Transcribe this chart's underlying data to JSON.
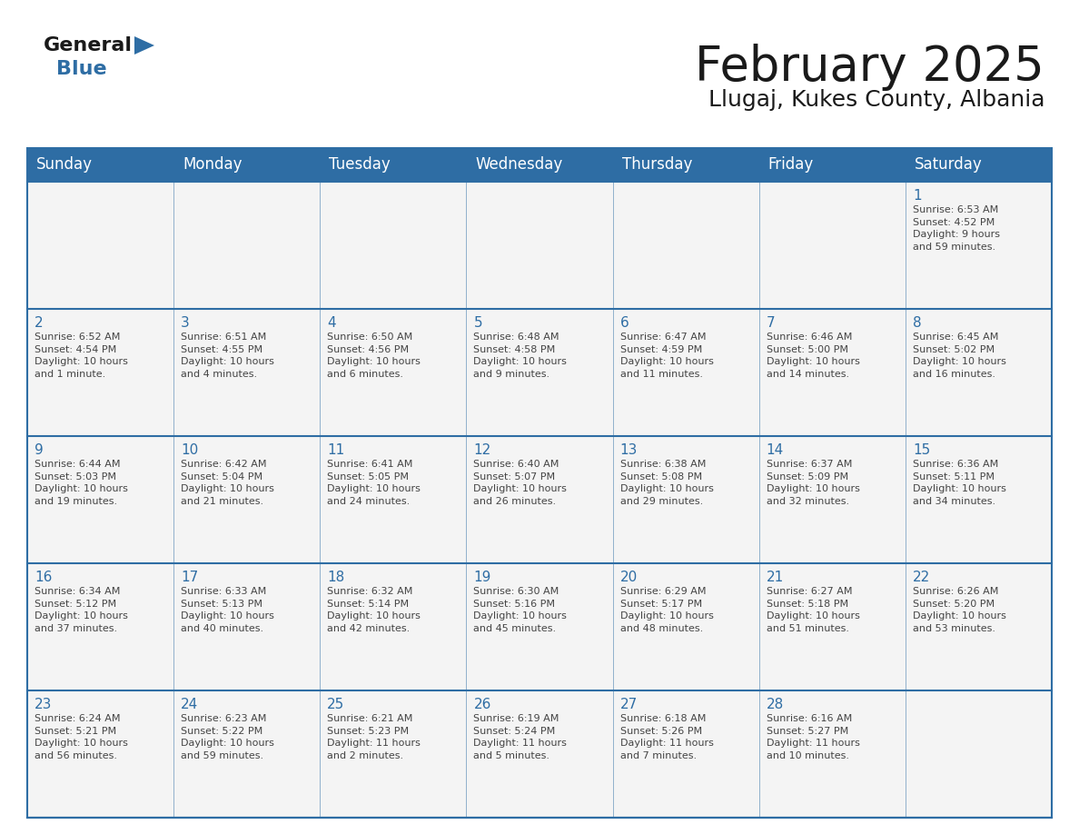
{
  "title": "February 2025",
  "subtitle": "Llugaj, Kukes County, Albania",
  "header_bg": "#2E6DA4",
  "header_text_color": "#FFFFFF",
  "border_color": "#2E6DA4",
  "day_names": [
    "Sunday",
    "Monday",
    "Tuesday",
    "Wednesday",
    "Thursday",
    "Friday",
    "Saturday"
  ],
  "title_color": "#1a1a1a",
  "subtitle_color": "#1a1a1a",
  "day_num_color": "#2E6DA4",
  "cell_text_color": "#444444",
  "cell_bg": "#F4F4F4",
  "weeks": [
    [
      {
        "day": null,
        "info": ""
      },
      {
        "day": null,
        "info": ""
      },
      {
        "day": null,
        "info": ""
      },
      {
        "day": null,
        "info": ""
      },
      {
        "day": null,
        "info": ""
      },
      {
        "day": null,
        "info": ""
      },
      {
        "day": 1,
        "info": "Sunrise: 6:53 AM\nSunset: 4:52 PM\nDaylight: 9 hours\nand 59 minutes."
      }
    ],
    [
      {
        "day": 2,
        "info": "Sunrise: 6:52 AM\nSunset: 4:54 PM\nDaylight: 10 hours\nand 1 minute."
      },
      {
        "day": 3,
        "info": "Sunrise: 6:51 AM\nSunset: 4:55 PM\nDaylight: 10 hours\nand 4 minutes."
      },
      {
        "day": 4,
        "info": "Sunrise: 6:50 AM\nSunset: 4:56 PM\nDaylight: 10 hours\nand 6 minutes."
      },
      {
        "day": 5,
        "info": "Sunrise: 6:48 AM\nSunset: 4:58 PM\nDaylight: 10 hours\nand 9 minutes."
      },
      {
        "day": 6,
        "info": "Sunrise: 6:47 AM\nSunset: 4:59 PM\nDaylight: 10 hours\nand 11 minutes."
      },
      {
        "day": 7,
        "info": "Sunrise: 6:46 AM\nSunset: 5:00 PM\nDaylight: 10 hours\nand 14 minutes."
      },
      {
        "day": 8,
        "info": "Sunrise: 6:45 AM\nSunset: 5:02 PM\nDaylight: 10 hours\nand 16 minutes."
      }
    ],
    [
      {
        "day": 9,
        "info": "Sunrise: 6:44 AM\nSunset: 5:03 PM\nDaylight: 10 hours\nand 19 minutes."
      },
      {
        "day": 10,
        "info": "Sunrise: 6:42 AM\nSunset: 5:04 PM\nDaylight: 10 hours\nand 21 minutes."
      },
      {
        "day": 11,
        "info": "Sunrise: 6:41 AM\nSunset: 5:05 PM\nDaylight: 10 hours\nand 24 minutes."
      },
      {
        "day": 12,
        "info": "Sunrise: 6:40 AM\nSunset: 5:07 PM\nDaylight: 10 hours\nand 26 minutes."
      },
      {
        "day": 13,
        "info": "Sunrise: 6:38 AM\nSunset: 5:08 PM\nDaylight: 10 hours\nand 29 minutes."
      },
      {
        "day": 14,
        "info": "Sunrise: 6:37 AM\nSunset: 5:09 PM\nDaylight: 10 hours\nand 32 minutes."
      },
      {
        "day": 15,
        "info": "Sunrise: 6:36 AM\nSunset: 5:11 PM\nDaylight: 10 hours\nand 34 minutes."
      }
    ],
    [
      {
        "day": 16,
        "info": "Sunrise: 6:34 AM\nSunset: 5:12 PM\nDaylight: 10 hours\nand 37 minutes."
      },
      {
        "day": 17,
        "info": "Sunrise: 6:33 AM\nSunset: 5:13 PM\nDaylight: 10 hours\nand 40 minutes."
      },
      {
        "day": 18,
        "info": "Sunrise: 6:32 AM\nSunset: 5:14 PM\nDaylight: 10 hours\nand 42 minutes."
      },
      {
        "day": 19,
        "info": "Sunrise: 6:30 AM\nSunset: 5:16 PM\nDaylight: 10 hours\nand 45 minutes."
      },
      {
        "day": 20,
        "info": "Sunrise: 6:29 AM\nSunset: 5:17 PM\nDaylight: 10 hours\nand 48 minutes."
      },
      {
        "day": 21,
        "info": "Sunrise: 6:27 AM\nSunset: 5:18 PM\nDaylight: 10 hours\nand 51 minutes."
      },
      {
        "day": 22,
        "info": "Sunrise: 6:26 AM\nSunset: 5:20 PM\nDaylight: 10 hours\nand 53 minutes."
      }
    ],
    [
      {
        "day": 23,
        "info": "Sunrise: 6:24 AM\nSunset: 5:21 PM\nDaylight: 10 hours\nand 56 minutes."
      },
      {
        "day": 24,
        "info": "Sunrise: 6:23 AM\nSunset: 5:22 PM\nDaylight: 10 hours\nand 59 minutes."
      },
      {
        "day": 25,
        "info": "Sunrise: 6:21 AM\nSunset: 5:23 PM\nDaylight: 11 hours\nand 2 minutes."
      },
      {
        "day": 26,
        "info": "Sunrise: 6:19 AM\nSunset: 5:24 PM\nDaylight: 11 hours\nand 5 minutes."
      },
      {
        "day": 27,
        "info": "Sunrise: 6:18 AM\nSunset: 5:26 PM\nDaylight: 11 hours\nand 7 minutes."
      },
      {
        "day": 28,
        "info": "Sunrise: 6:16 AM\nSunset: 5:27 PM\nDaylight: 11 hours\nand 10 minutes."
      },
      {
        "day": null,
        "info": ""
      }
    ]
  ],
  "logo_general_color": "#1a1a1a",
  "logo_blue_color": "#2E6DA4",
  "logo_triangle_color": "#2E6DA4"
}
